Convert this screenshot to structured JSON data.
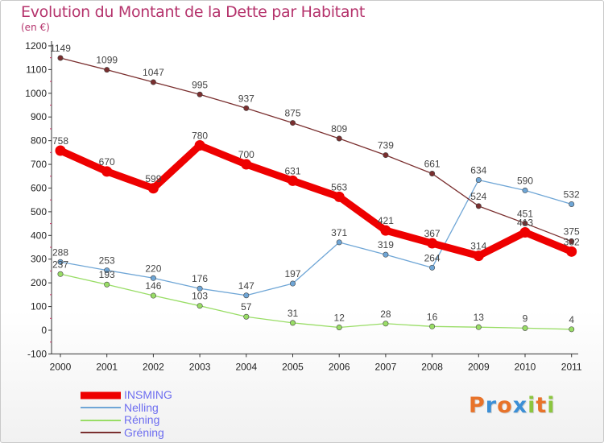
{
  "title": "Evolution du Montant de la Dette par Habitant",
  "subtitle": "(en €)",
  "logo": {
    "text": "Proxiti",
    "letters": [
      {
        "ch": "P",
        "color": "#e8732a"
      },
      {
        "ch": "r",
        "color": "#3c8fd6"
      },
      {
        "ch": "o",
        "color": "#e8732a"
      },
      {
        "ch": "x",
        "color": "#3c8fd6"
      },
      {
        "ch": "i",
        "color": "#8cc63f"
      },
      {
        "ch": "t",
        "color": "#e8732a"
      },
      {
        "ch": "i",
        "color": "#8cc63f"
      }
    ]
  },
  "chart_data": {
    "type": "line",
    "title": "Evolution du Montant de la Dette par Habitant",
    "ylabel": "(en €)",
    "xlabel": "",
    "x": [
      "2000",
      "2001",
      "2002",
      "2003",
      "2004",
      "2005",
      "2006",
      "2007",
      "2008",
      "2009",
      "2010",
      "2011"
    ],
    "ylim": [
      -100,
      1200
    ],
    "yticks": [
      -100,
      0,
      100,
      200,
      300,
      400,
      500,
      600,
      700,
      800,
      900,
      1000,
      1100,
      1200
    ],
    "grid": false,
    "legend_position": "bottom-left",
    "series": [
      {
        "name": "INSMING",
        "color": "#ee0000",
        "width": "thick",
        "values": [
          758,
          670,
          599,
          780,
          700,
          631,
          563,
          421,
          367,
          314,
          413,
          332
        ]
      },
      {
        "name": "Nelling",
        "color": "#6fa6d6",
        "width": "thin",
        "values": [
          288,
          253,
          220,
          176,
          147,
          197,
          371,
          319,
          264,
          634,
          590,
          532
        ]
      },
      {
        "name": "Réning",
        "color": "#99dd66",
        "width": "thin",
        "values": [
          237,
          193,
          146,
          103,
          57,
          31,
          12,
          28,
          16,
          13,
          9,
          4
        ]
      },
      {
        "name": "Gréning",
        "color": "#7a2f2f",
        "width": "thin",
        "values": [
          1149,
          1099,
          1047,
          995,
          937,
          875,
          809,
          739,
          661,
          524,
          451,
          375
        ]
      }
    ]
  }
}
